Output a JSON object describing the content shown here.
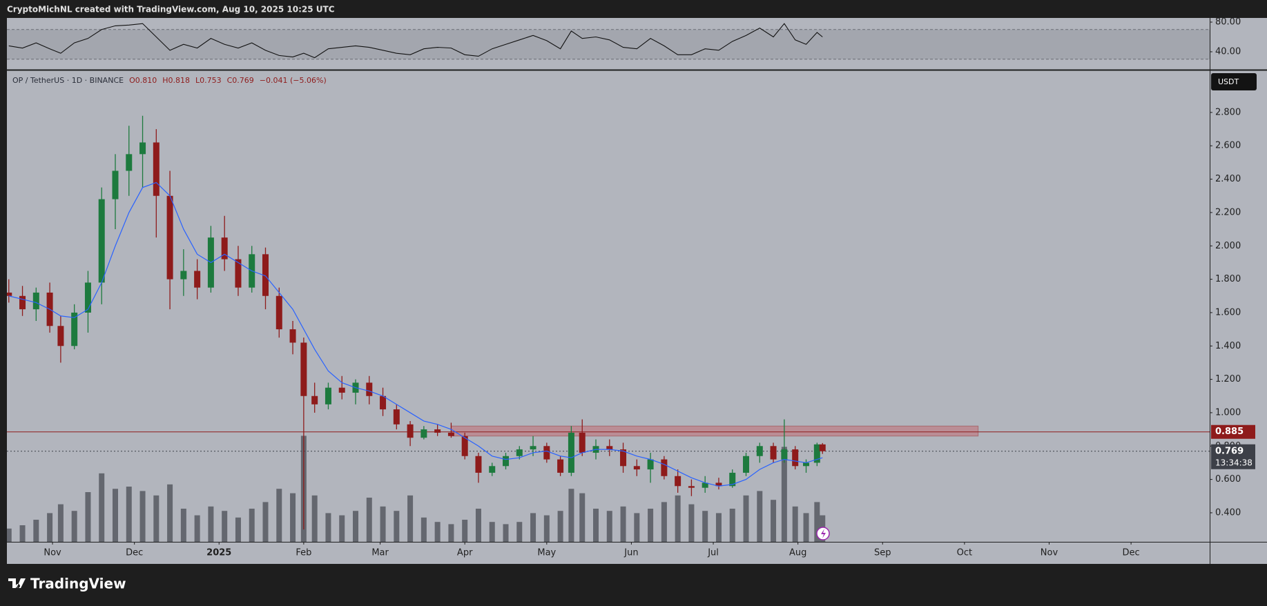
{
  "header": "CryptoMichNL created with TradingView.com, Aug 10, 2025 10:25 UTC",
  "footer_logo": "TradingView",
  "chart_data": [
    {
      "type": "candlestick",
      "legend": [
        "OP / TetherUS · 1D · BINANCE",
        "O0.810",
        "H0.818",
        "L0.753",
        "C0.769",
        "−0.041 (−5.06%)"
      ],
      "currency": "USDT",
      "x": [
        -16,
        -11,
        -6,
        -1,
        3,
        8,
        13,
        18,
        23,
        28,
        33,
        38,
        43,
        48,
        53,
        58,
        63,
        68,
        73,
        78,
        83,
        88,
        92,
        96,
        101,
        106,
        111,
        116,
        121,
        126,
        131,
        136,
        141,
        146,
        151,
        156,
        161,
        166,
        171,
        176,
        181,
        186,
        190,
        194,
        199,
        204,
        209,
        214,
        219,
        224,
        229,
        234,
        239,
        244,
        249,
        254,
        259,
        264,
        268,
        272,
        276,
        280,
        282
      ],
      "open": [
        1.72,
        1.7,
        1.62,
        1.72,
        1.52,
        1.4,
        1.6,
        1.78,
        2.28,
        2.45,
        2.55,
        2.62,
        2.3,
        1.8,
        1.85,
        1.75,
        2.05,
        1.92,
        1.75,
        1.95,
        1.7,
        1.5,
        1.42,
        1.1,
        1.05,
        1.15,
        1.12,
        1.18,
        1.1,
        1.02,
        0.93,
        0.85,
        0.9,
        0.88,
        0.86,
        0.74,
        0.64,
        0.68,
        0.74,
        0.78,
        0.8,
        0.72,
        0.64,
        0.88,
        0.76,
        0.8,
        0.78,
        0.68,
        0.66,
        0.72,
        0.62,
        0.56,
        0.55,
        0.58,
        0.56,
        0.64,
        0.74,
        0.8,
        0.72,
        0.78,
        0.68,
        0.7,
        0.81
      ],
      "high": [
        1.8,
        1.76,
        1.75,
        1.78,
        1.58,
        1.65,
        1.85,
        2.35,
        2.55,
        2.72,
        2.78,
        2.7,
        2.45,
        1.98,
        1.92,
        2.12,
        2.18,
        2.0,
        2.0,
        1.99,
        1.75,
        1.55,
        1.45,
        1.18,
        1.18,
        1.22,
        1.2,
        1.22,
        1.15,
        1.05,
        0.95,
        0.92,
        0.93,
        0.94,
        0.88,
        0.76,
        0.7,
        0.76,
        0.8,
        0.86,
        0.82,
        0.74,
        0.92,
        0.96,
        0.84,
        0.84,
        0.82,
        0.72,
        0.76,
        0.74,
        0.66,
        0.6,
        0.62,
        0.61,
        0.66,
        0.76,
        0.82,
        0.82,
        0.96,
        0.8,
        0.72,
        0.82,
        0.818
      ],
      "low": [
        1.66,
        1.58,
        1.55,
        1.48,
        1.3,
        1.38,
        1.48,
        1.65,
        2.1,
        2.3,
        2.35,
        2.05,
        1.62,
        1.7,
        1.68,
        1.72,
        1.85,
        1.7,
        1.72,
        1.62,
        1.45,
        1.35,
        0.3,
        1.0,
        1.02,
        1.08,
        1.05,
        1.05,
        0.98,
        0.9,
        0.8,
        0.84,
        0.86,
        0.85,
        0.72,
        0.58,
        0.62,
        0.66,
        0.72,
        0.74,
        0.7,
        0.62,
        0.62,
        0.74,
        0.72,
        0.74,
        0.64,
        0.62,
        0.58,
        0.6,
        0.52,
        0.5,
        0.52,
        0.54,
        0.55,
        0.62,
        0.7,
        0.7,
        0.7,
        0.66,
        0.64,
        0.68,
        0.753
      ],
      "close": [
        1.7,
        1.62,
        1.72,
        1.52,
        1.4,
        1.6,
        1.78,
        2.28,
        2.45,
        2.55,
        2.62,
        2.3,
        1.8,
        1.85,
        1.75,
        2.05,
        1.92,
        1.75,
        1.95,
        1.7,
        1.5,
        1.42,
        1.1,
        1.05,
        1.15,
        1.12,
        1.18,
        1.1,
        1.02,
        0.93,
        0.85,
        0.9,
        0.88,
        0.86,
        0.74,
        0.64,
        0.68,
        0.74,
        0.78,
        0.8,
        0.72,
        0.64,
        0.88,
        0.76,
        0.8,
        0.78,
        0.68,
        0.66,
        0.72,
        0.62,
        0.56,
        0.55,
        0.58,
        0.56,
        0.64,
        0.74,
        0.8,
        0.72,
        0.78,
        0.68,
        0.7,
        0.81,
        0.769
      ],
      "up_color": "#1d7a3e",
      "down_color": "#8e1b1b",
      "moving_average": {
        "color": "#2962ff",
        "values": [
          1.7,
          1.68,
          1.66,
          1.62,
          1.58,
          1.57,
          1.62,
          1.78,
          2.0,
          2.2,
          2.35,
          2.38,
          2.3,
          2.1,
          1.95,
          1.9,
          1.95,
          1.9,
          1.85,
          1.82,
          1.72,
          1.62,
          1.5,
          1.38,
          1.25,
          1.18,
          1.15,
          1.13,
          1.1,
          1.05,
          1.0,
          0.95,
          0.93,
          0.9,
          0.85,
          0.8,
          0.74,
          0.72,
          0.73,
          0.76,
          0.77,
          0.74,
          0.73,
          0.76,
          0.78,
          0.78,
          0.77,
          0.74,
          0.72,
          0.69,
          0.65,
          0.61,
          0.58,
          0.56,
          0.57,
          0.6,
          0.66,
          0.7,
          0.72,
          0.71,
          0.7,
          0.72,
          0.73
        ]
      },
      "volume": {
        "color": "#4a4d55",
        "vlim": [
          0,
          10
        ],
        "values": [
          1.2,
          1.5,
          2.0,
          2.6,
          3.4,
          2.8,
          4.5,
          6.2,
          4.8,
          5.0,
          4.6,
          4.2,
          5.2,
          3.0,
          2.4,
          3.2,
          2.8,
          2.2,
          3.0,
          3.6,
          4.8,
          4.4,
          9.6,
          4.2,
          2.6,
          2.4,
          2.8,
          4.0,
          3.2,
          2.8,
          4.2,
          2.2,
          1.8,
          1.6,
          2.0,
          3.0,
          1.8,
          1.6,
          1.8,
          2.6,
          2.4,
          2.8,
          4.8,
          4.4,
          3.0,
          2.8,
          3.2,
          2.6,
          3.0,
          3.6,
          4.2,
          3.4,
          2.8,
          2.6,
          3.0,
          4.2,
          4.6,
          3.8,
          8.6,
          3.2,
          2.6,
          3.6,
          2.4
        ]
      },
      "zone": {
        "from": 146,
        "to": 339,
        "low": 0.86,
        "high": 0.92,
        "color": "#c0737a"
      },
      "price_labels": [
        {
          "value": 0.885,
          "label": "0.885",
          "color": "#8e1b1b"
        },
        {
          "value": 0.769,
          "label": "0.769",
          "color": "#3d4048",
          "countdown": "13:34:38"
        }
      ],
      "xlim": [
        -16.7,
        423.8
      ],
      "xticks": [
        {
          "value": 0,
          "label": "Nov"
        },
        {
          "value": 30,
          "label": "Dec"
        },
        {
          "value": 61,
          "label": "2025"
        },
        {
          "value": 92,
          "label": "Feb"
        },
        {
          "value": 120,
          "label": "Mar"
        },
        {
          "value": 151,
          "label": "Apr"
        },
        {
          "value": 181,
          "label": "May"
        },
        {
          "value": 212,
          "label": "Jun"
        },
        {
          "value": 242,
          "label": "Jul"
        },
        {
          "value": 273,
          "label": "Aug"
        },
        {
          "value": 304,
          "label": "Sep"
        },
        {
          "value": 334,
          "label": "Oct"
        },
        {
          "value": 365,
          "label": "Nov"
        },
        {
          "value": 395,
          "label": "Dec"
        }
      ],
      "ylim": [
        0.226,
        3.052
      ],
      "yticks": [
        {
          "value": 0.4,
          "label": "0.400"
        },
        {
          "value": 0.6,
          "label": "0.600"
        },
        {
          "value": 0.8,
          "label": "0.800"
        },
        {
          "value": 1.0,
          "label": "1.000"
        },
        {
          "value": 1.2,
          "label": "1.200"
        },
        {
          "value": 1.4,
          "label": "1.400"
        },
        {
          "value": 1.6,
          "label": "1.600"
        },
        {
          "value": 1.8,
          "label": "1.800"
        },
        {
          "value": 2.0,
          "label": "2.000"
        },
        {
          "value": 2.2,
          "label": "2.200"
        },
        {
          "value": 2.4,
          "label": "2.400"
        },
        {
          "value": 2.6,
          "label": "2.600"
        },
        {
          "value": 2.8,
          "label": "2.800"
        }
      ],
      "grid": false
    },
    {
      "type": "line",
      "x": [
        -16,
        -11,
        -6,
        -1,
        3,
        8,
        13,
        18,
        23,
        28,
        33,
        38,
        43,
        48,
        53,
        58,
        63,
        68,
        73,
        78,
        83,
        88,
        92,
        96,
        101,
        106,
        111,
        116,
        121,
        126,
        131,
        136,
        141,
        146,
        151,
        156,
        161,
        166,
        171,
        176,
        181,
        186,
        190,
        194,
        199,
        204,
        209,
        214,
        219,
        224,
        229,
        234,
        239,
        244,
        249,
        254,
        259,
        264,
        268,
        272,
        276,
        280,
        282
      ],
      "values": [
        48,
        45,
        52,
        44,
        38,
        52,
        58,
        70,
        75,
        76,
        78,
        60,
        42,
        50,
        45,
        58,
        50,
        45,
        52,
        42,
        35,
        33,
        38,
        32,
        44,
        46,
        48,
        46,
        42,
        38,
        36,
        44,
        46,
        45,
        36,
        34,
        44,
        50,
        56,
        62,
        55,
        44,
        68,
        58,
        60,
        56,
        46,
        44,
        58,
        48,
        36,
        36,
        44,
        42,
        54,
        62,
        72,
        60,
        78,
        56,
        50,
        66,
        60
      ],
      "color": "#111111",
      "band": [
        30,
        70
      ],
      "band_color": "#9da0a8",
      "xlim": [
        -16.7,
        423.8
      ],
      "ylim": [
        15.8,
        85.6
      ],
      "yticks": [
        {
          "value": 40,
          "label": "40.00"
        },
        {
          "value": 80,
          "label": "80.00"
        }
      ]
    }
  ]
}
